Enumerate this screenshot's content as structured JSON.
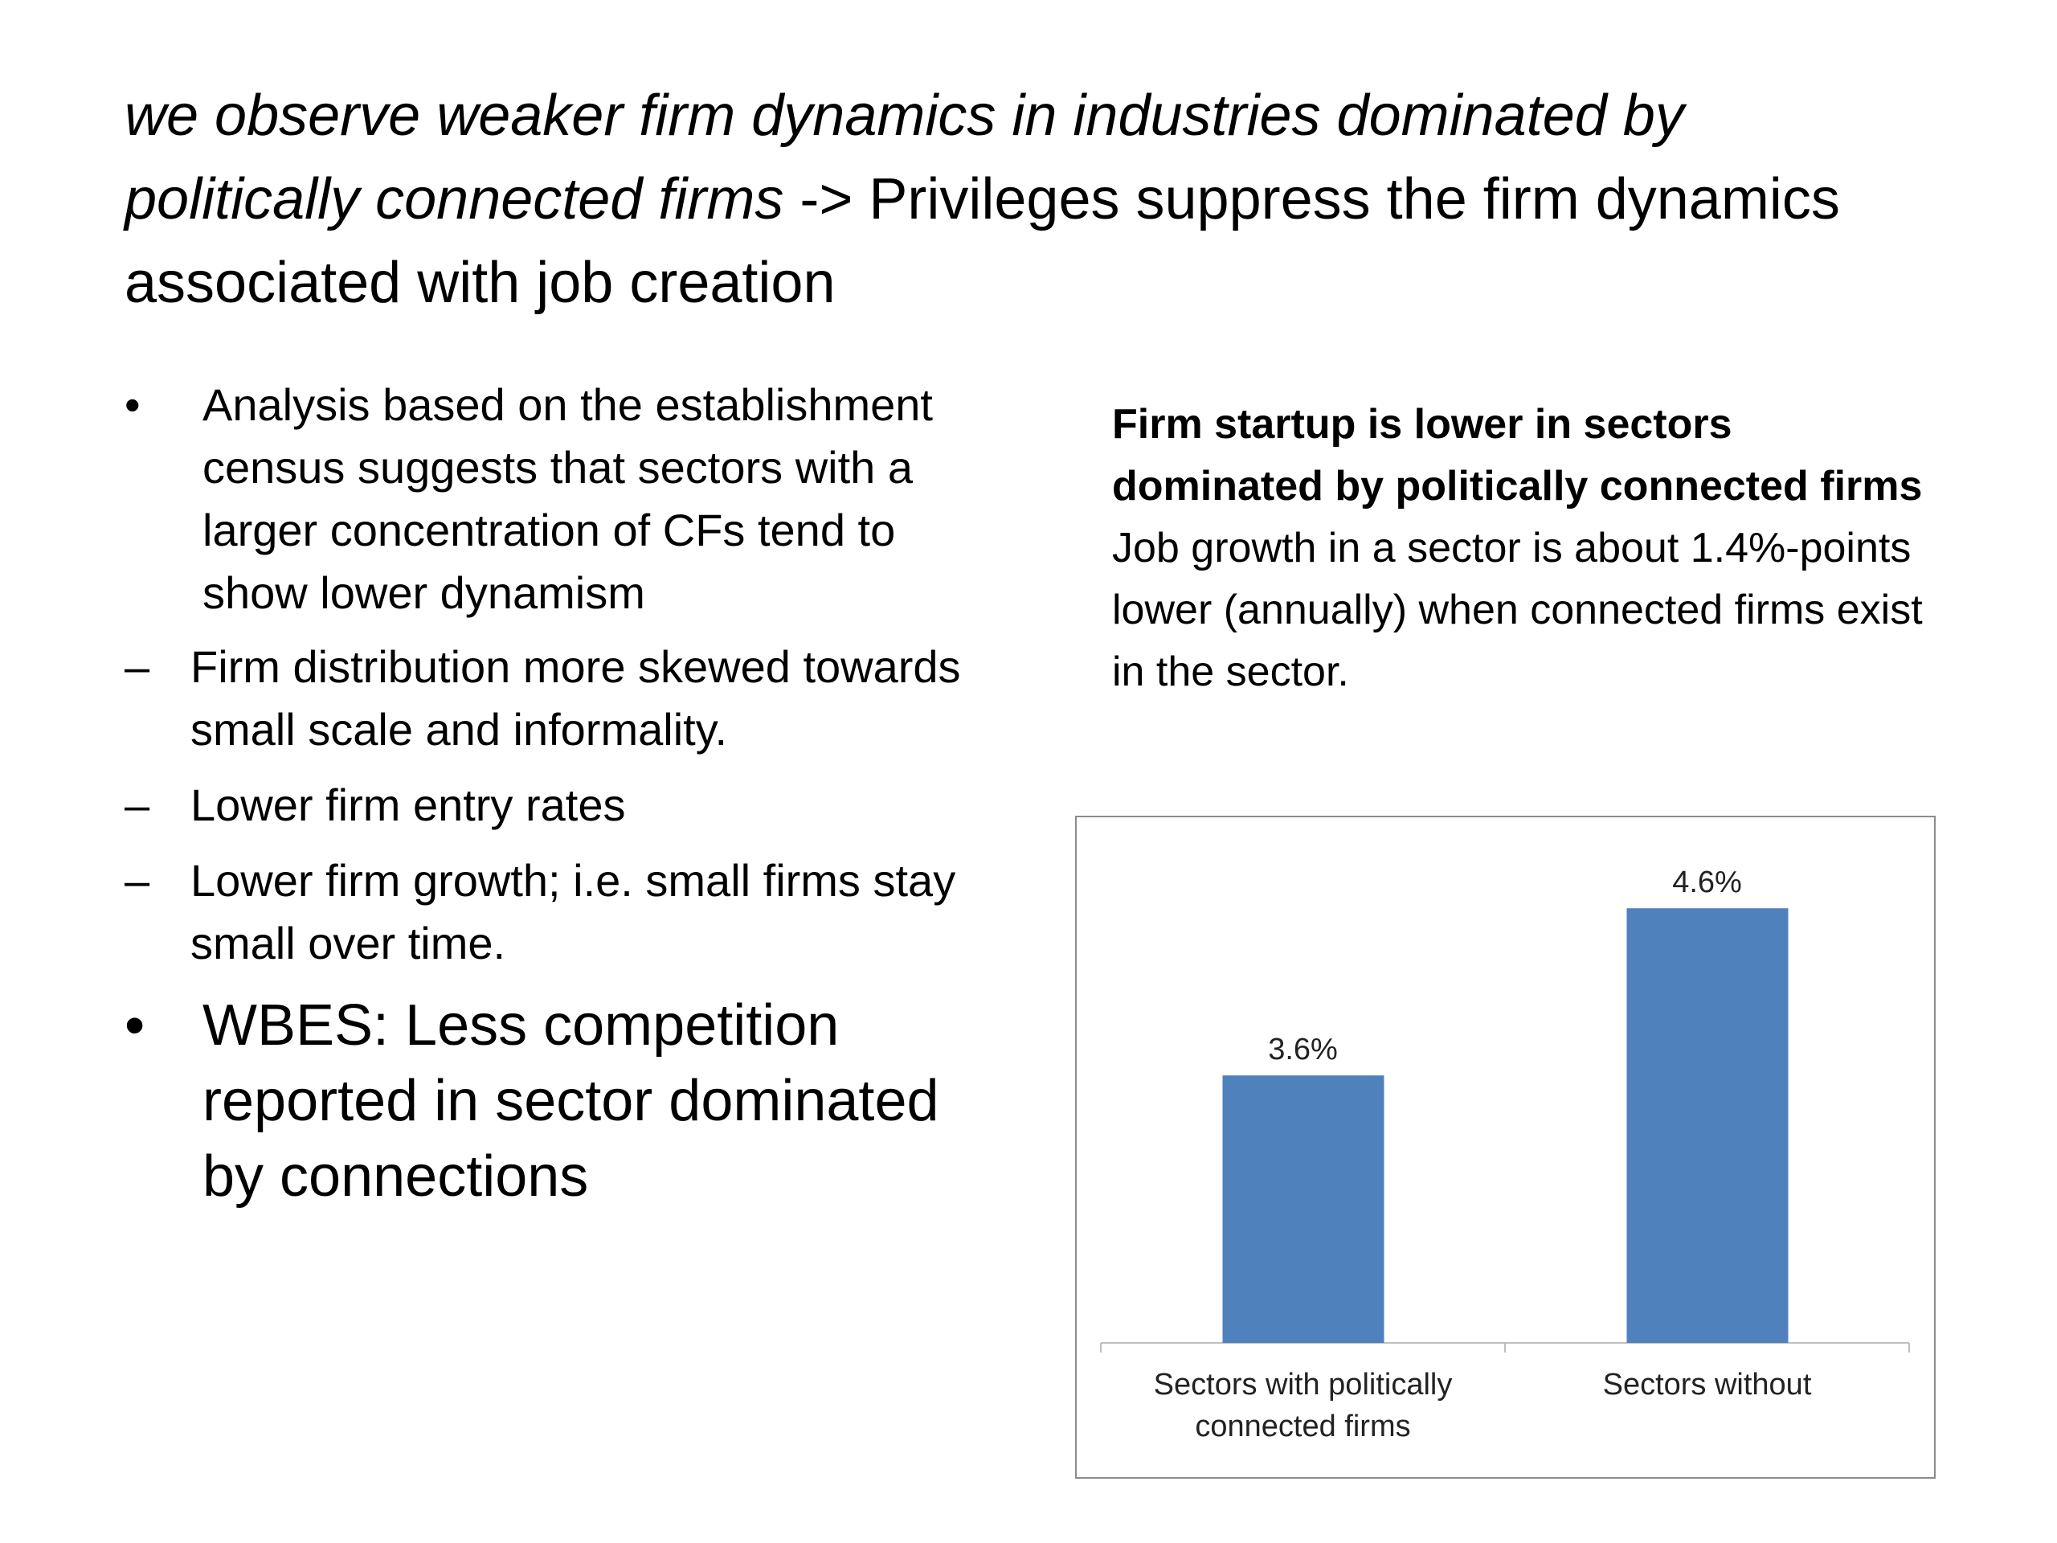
{
  "title": {
    "italic": "we observe weaker firm dynamics in industries dominated by politically connected firms",
    "normal": "-> Privileges suppress the firm dynamics associated with job creation"
  },
  "bullets": [
    {
      "text": "Analysis based on the establishment census suggests that sectors with a larger concentration of CFs tend to show lower dynamism",
      "subitems": [
        "Firm distribution more skewed towards small scale and informality.",
        "Lower firm entry rates",
        "Lower firm growth; i.e. small firms stay small over time."
      ]
    },
    {
      "text": "WBES: Less competition reported in sector dominated by connections"
    }
  ],
  "chart_caption": {
    "heading": "Firm startup is lower in sectors dominated by politically connected firms",
    "body": "Job growth in a sector is about 1.4%-points lower (annually) when connected firms exist in the sector."
  },
  "chart_data": {
    "type": "bar",
    "categories": [
      "Sectors with politically connected firms",
      "Sectors without"
    ],
    "values": [
      3.6,
      4.6
    ],
    "value_labels": [
      "3.6%",
      "4.6%"
    ],
    "color": "#4f81bd",
    "ylim": [
      2,
      5
    ]
  }
}
